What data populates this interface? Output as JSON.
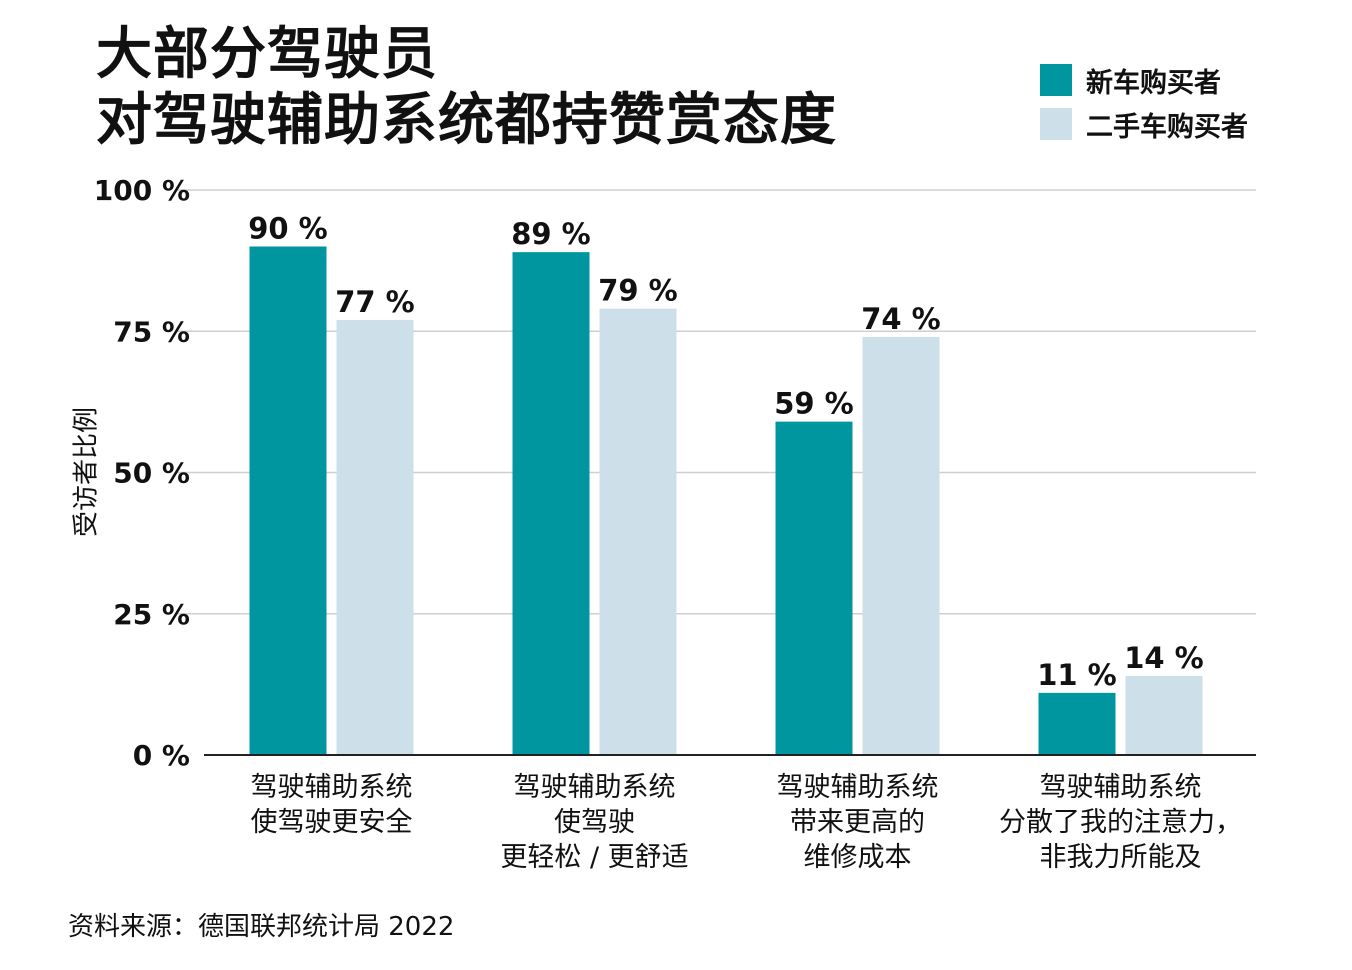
{
  "title": {
    "line1": "大部分驾驶员",
    "line2": "对驾驶辅助系统都持赞赏态度"
  },
  "legend": [
    {
      "label": "新车购买者",
      "color": "#0096a0"
    },
    {
      "label": "二手车购买者",
      "color": "#cde0ea"
    }
  ],
  "colors": {
    "new": "#0096a0",
    "used": "#cde0ea",
    "grid": "#cfcfcf",
    "axis": "#222222"
  },
  "source": "资料来源：德国联邦统计局 2022",
  "chart_data": {
    "type": "bar",
    "ylabel": "受访者比例",
    "ylim": [
      0,
      100
    ],
    "yticks": [
      0,
      25,
      50,
      75,
      100
    ],
    "ytick_labels": [
      "0 %",
      "25 %",
      "50 %",
      "75 %",
      "100 %"
    ],
    "grid": true,
    "categories": [
      [
        "驾驶辅助系统",
        "使驾驶更安全"
      ],
      [
        "驾驶辅助系统",
        "使驾驶",
        "更轻松 / 更舒适"
      ],
      [
        "驾驶辅助系统",
        "带来更高的",
        "维修成本"
      ],
      [
        "驾驶辅助系统",
        "分散了我的注意力，",
        "非我力所能及"
      ]
    ],
    "series": [
      {
        "name": "新车购买者",
        "values": [
          90,
          89,
          59,
          11
        ],
        "labels": [
          "90 %",
          "89 %",
          "59 %",
          "11 %"
        ]
      },
      {
        "name": "二手车购买者",
        "values": [
          77,
          79,
          74,
          14
        ],
        "labels": [
          "77 %",
          "79 %",
          "74 %",
          "14 %"
        ]
      }
    ]
  }
}
